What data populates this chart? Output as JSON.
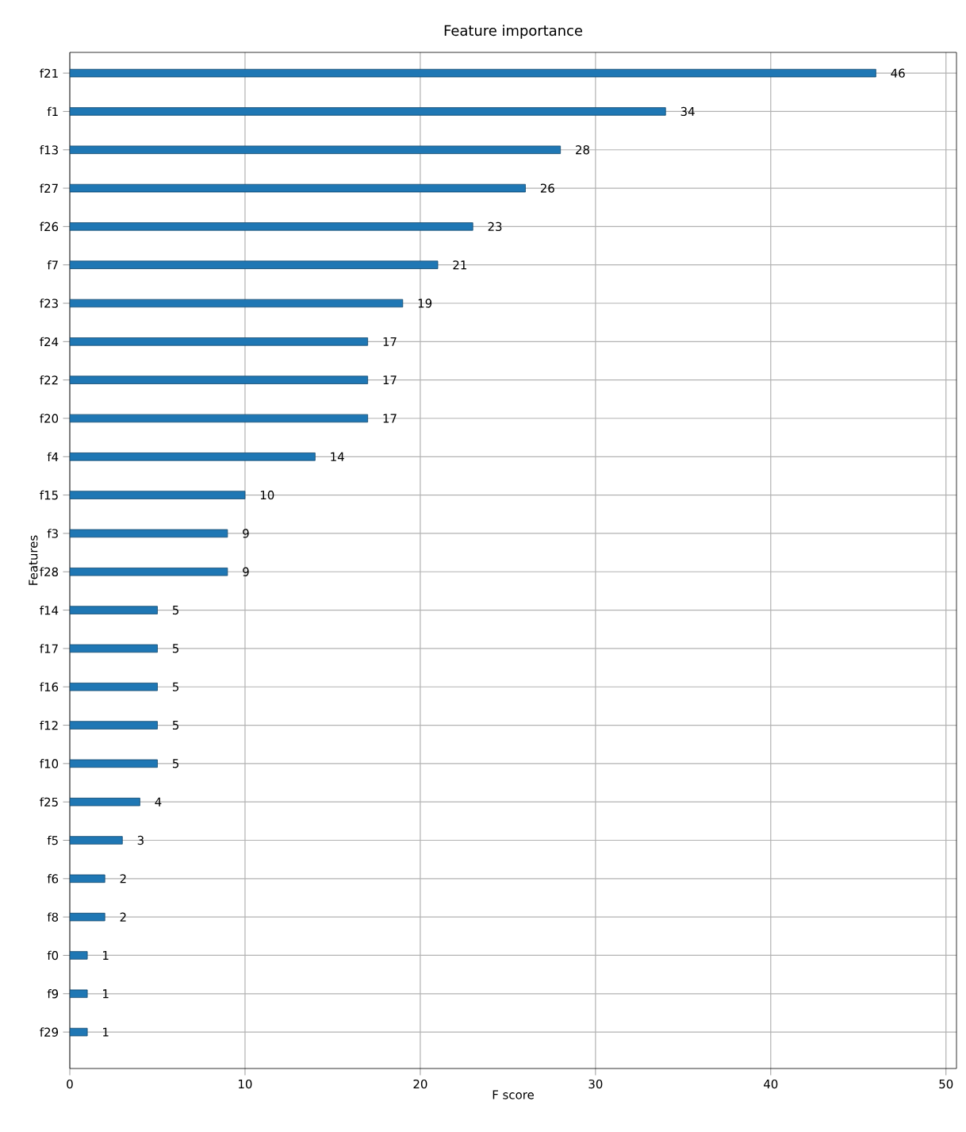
{
  "chart_data": {
    "type": "bar",
    "orientation": "horizontal",
    "title": "Feature importance",
    "xlabel": "F score",
    "ylabel": "Features",
    "categories": [
      "f21",
      "f1",
      "f13",
      "f27",
      "f26",
      "f7",
      "f23",
      "f24",
      "f22",
      "f20",
      "f4",
      "f15",
      "f3",
      "f28",
      "f14",
      "f17",
      "f16",
      "f12",
      "f10",
      "f25",
      "f5",
      "f6",
      "f8",
      "f0",
      "f9",
      "f29"
    ],
    "values": [
      46,
      34,
      28,
      26,
      23,
      21,
      19,
      17,
      17,
      17,
      14,
      10,
      9,
      9,
      5,
      5,
      5,
      5,
      5,
      4,
      3,
      2,
      2,
      1,
      1,
      1
    ],
    "color": "#1f77b4",
    "xlim": [
      0,
      50.6
    ],
    "xticks": [
      0,
      10,
      20,
      30,
      40,
      50
    ],
    "grid": true,
    "data_labels": true
  }
}
